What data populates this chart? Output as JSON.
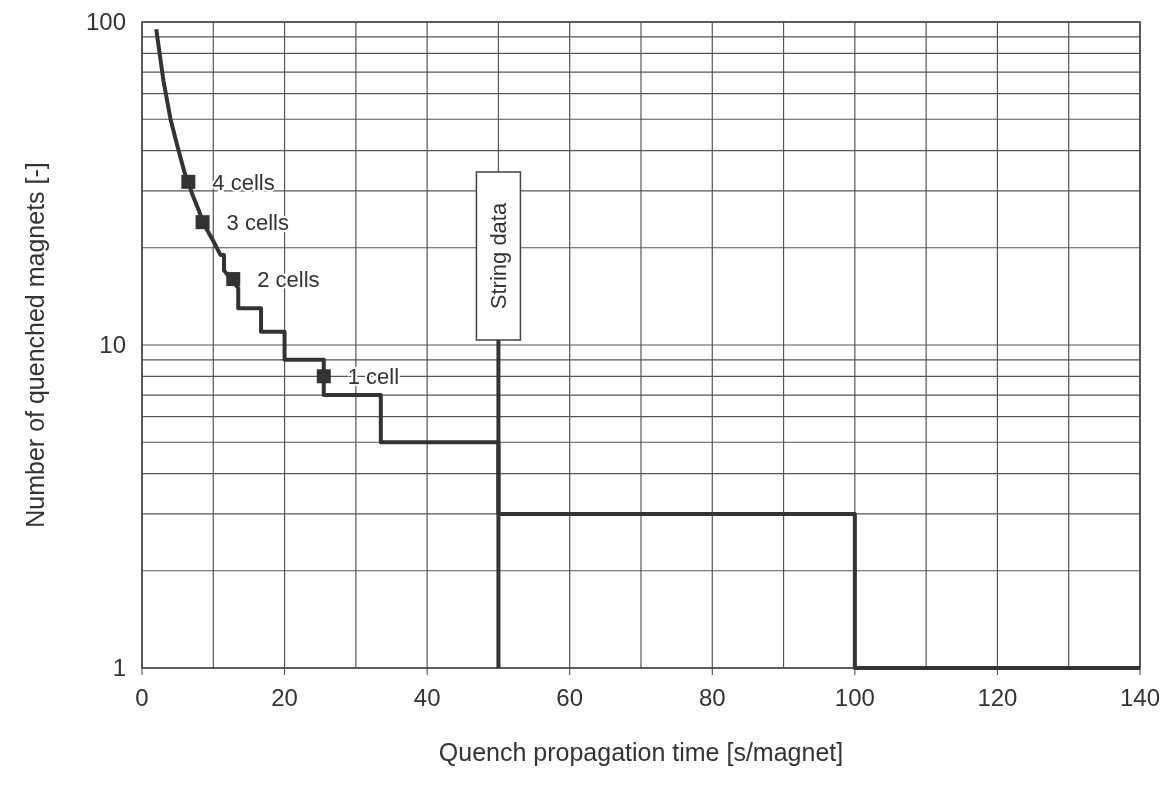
{
  "chart_data": {
    "type": "line",
    "xlabel": "Quench propagation time [s/magnet]",
    "ylabel": "Number of quenched magnets [-]",
    "log": "y",
    "grid": true,
    "xlim": [
      0,
      140
    ],
    "ylim": [
      1,
      100
    ],
    "xticks": [
      0,
      {
        "value": 10,
        "label": null
      },
      20,
      {
        "value": 30,
        "label": null
      },
      40,
      {
        "value": 50,
        "label": null
      },
      60,
      {
        "value": 70,
        "label": null
      },
      80,
      {
        "value": 90,
        "label": null
      },
      100,
      {
        "value": 110,
        "label": null
      },
      120,
      {
        "value": 130,
        "label": null
      },
      140
    ],
    "yticks": [
      1,
      {
        "value": 2,
        "label": null
      },
      {
        "value": 3,
        "label": null
      },
      {
        "value": 4,
        "label": null
      },
      {
        "value": 5,
        "label": null
      },
      {
        "value": 6,
        "label": null
      },
      {
        "value": 7,
        "label": null
      },
      {
        "value": 8,
        "label": null
      },
      {
        "value": 9,
        "label": null
      },
      10,
      {
        "value": 20,
        "label": null
      },
      {
        "value": 30,
        "label": null
      },
      {
        "value": 40,
        "label": null
      },
      {
        "value": 50,
        "label": null
      },
      {
        "value": 60,
        "label": null
      },
      {
        "value": 70,
        "label": null
      },
      {
        "value": 80,
        "label": null
      },
      {
        "value": 90,
        "label": null
      },
      100
    ],
    "series": [
      {
        "color": "#333333",
        "marker": "none",
        "line_style": "solid",
        "x": [
          2,
          3,
          4,
          5,
          6,
          6.5,
          7,
          8,
          8.5,
          9,
          10,
          11,
          11.5,
          11.5,
          12.5,
          13.5,
          13.5,
          16.7,
          16.7,
          20,
          20,
          25.5,
          25.5,
          33.5,
          33.5,
          50,
          50,
          100,
          100,
          140
        ],
        "values": [
          95,
          66,
          50,
          41,
          34,
          32,
          29.5,
          26,
          24,
          23,
          21,
          19,
          19,
          17,
          16,
          15,
          13,
          13,
          11,
          11,
          9,
          9,
          7,
          7,
          5,
          5,
          3,
          3,
          1,
          1
        ]
      },
      {
        "type": "scatter",
        "color": "#333333",
        "marker": "square",
        "x": [
          6.5,
          8.5,
          12.8,
          25.5
        ],
        "values": [
          32,
          24,
          16,
          8
        ]
      }
    ],
    "annotations": [
      {
        "text": "4 cells",
        "x": 6.5,
        "y": 32
      },
      {
        "text": "3 cells",
        "x": 8.5,
        "y": 24
      },
      {
        "text": "2 cells",
        "x": 12.8,
        "y": 16
      },
      {
        "text": "1 cell",
        "x": 25.5,
        "y": 8
      }
    ],
    "ref_lines": [
      {
        "axis": "x",
        "value": 50,
        "label": "String data",
        "color": "#333333"
      }
    ]
  }
}
